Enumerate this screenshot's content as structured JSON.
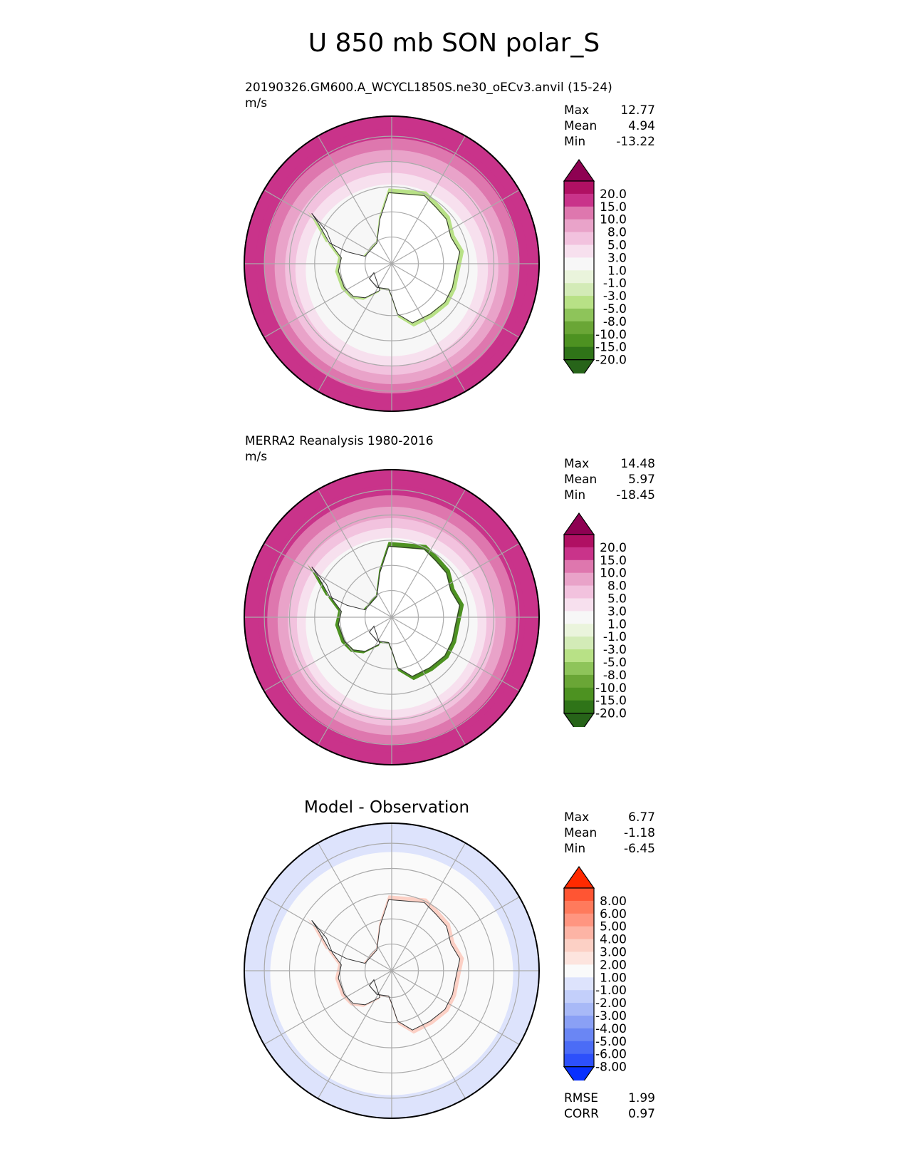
{
  "figure": {
    "title": "U 850 mb SON polar_S"
  },
  "chart_data": [
    {
      "type": "heatmap",
      "projection": "south-polar-stereographic",
      "panel": "test",
      "caption": "20190326.GM600.A_WCYCL1850S.ne30_oECv3.anvil (15-24)",
      "units": "m/s",
      "stats": {
        "max_label": "Max",
        "max": "12.77",
        "mean_label": "Mean",
        "mean": "4.94",
        "min_label": "Min",
        "min": "-13.22"
      },
      "colorbar": {
        "levels": [
          "20.0",
          "15.0",
          "10.0",
          "8.0",
          "5.0",
          "3.0",
          "1.0",
          "-1.0",
          "-3.0",
          "-5.0",
          "-8.0",
          "-10.0",
          "-15.0",
          "-20.0"
        ],
        "colors": [
          "#8e0152",
          "#b01063",
          "#c9338a",
          "#de77ae",
          "#e9a3c9",
          "#f2c2de",
          "#f7e0ee",
          "#f7f7f7",
          "#eaf4dc",
          "#d3ebb7",
          "#b8e186",
          "#8ec45a",
          "#6aa636",
          "#4d9221",
          "#2f7418",
          "#276419"
        ]
      },
      "bands": [
        {
          "value": 13,
          "r_frac": 1.0
        },
        {
          "value": 11,
          "r_frac": 0.92
        },
        {
          "value": 9,
          "r_frac": 0.86
        },
        {
          "value": 6.5,
          "r_frac": 0.79
        },
        {
          "value": 4,
          "r_frac": 0.72
        },
        {
          "value": 2,
          "r_frac": 0.65
        },
        {
          "value": 0,
          "r_frac": 0.58
        }
      ]
    },
    {
      "type": "heatmap",
      "projection": "south-polar-stereographic",
      "panel": "reference",
      "caption": "MERRA2 Reanalysis 1980-2016",
      "units": "m/s",
      "stats": {
        "max_label": "Max",
        "max": "14.48",
        "mean_label": "Mean",
        "mean": "5.97",
        "min_label": "Min",
        "min": "-18.45"
      },
      "colorbar": {
        "levels": [
          "20.0",
          "15.0",
          "10.0",
          "8.0",
          "5.0",
          "3.0",
          "1.0",
          "-1.0",
          "-3.0",
          "-5.0",
          "-8.0",
          "-10.0",
          "-15.0",
          "-20.0"
        ],
        "colors": [
          "#8e0152",
          "#b01063",
          "#c9338a",
          "#de77ae",
          "#e9a3c9",
          "#f2c2de",
          "#f7e0ee",
          "#f7f7f7",
          "#eaf4dc",
          "#d3ebb7",
          "#b8e186",
          "#8ec45a",
          "#6aa636",
          "#4d9221",
          "#2f7418",
          "#276419"
        ]
      },
      "bands": [
        {
          "value": 13,
          "r_frac": 1.0
        },
        {
          "value": 11,
          "r_frac": 0.9
        },
        {
          "value": 9,
          "r_frac": 0.84
        },
        {
          "value": 6.5,
          "r_frac": 0.77
        },
        {
          "value": 4,
          "r_frac": 0.7
        },
        {
          "value": 2,
          "r_frac": 0.64
        },
        {
          "value": 0,
          "r_frac": 0.58
        }
      ]
    },
    {
      "type": "heatmap",
      "projection": "south-polar-stereographic",
      "panel": "difference",
      "title": "Model - Observation",
      "stats": {
        "max_label": "Max",
        "max": "6.77",
        "mean_label": "Mean",
        "mean": "-1.18",
        "min_label": "Min",
        "min": "-6.45"
      },
      "metrics": {
        "rmse_label": "RMSE",
        "rmse": "1.99",
        "corr_label": "CORR",
        "corr": "0.97"
      },
      "colorbar": {
        "levels": [
          "8.00",
          "6.00",
          "5.00",
          "4.00",
          "3.00",
          "2.00",
          "1.00",
          "-1.00",
          "-2.00",
          "-3.00",
          "-4.00",
          "-5.00",
          "-6.00",
          "-8.00"
        ],
        "colors": [
          "#ff2a00",
          "#ff5533",
          "#ff7a5c",
          "#ff9580",
          "#fdb4a5",
          "#fcd0c5",
          "#fde4de",
          "#fafafa",
          "#dde3fc",
          "#c3cffa",
          "#a8b9f7",
          "#8aa0f5",
          "#6a86f4",
          "#4b6cf6",
          "#2d50fb",
          "#0730ff"
        ]
      },
      "bands": [
        {
          "value": -1.5,
          "r_frac": 1.0
        },
        {
          "value": -0.5,
          "r_frac": 0.82
        }
      ]
    }
  ]
}
